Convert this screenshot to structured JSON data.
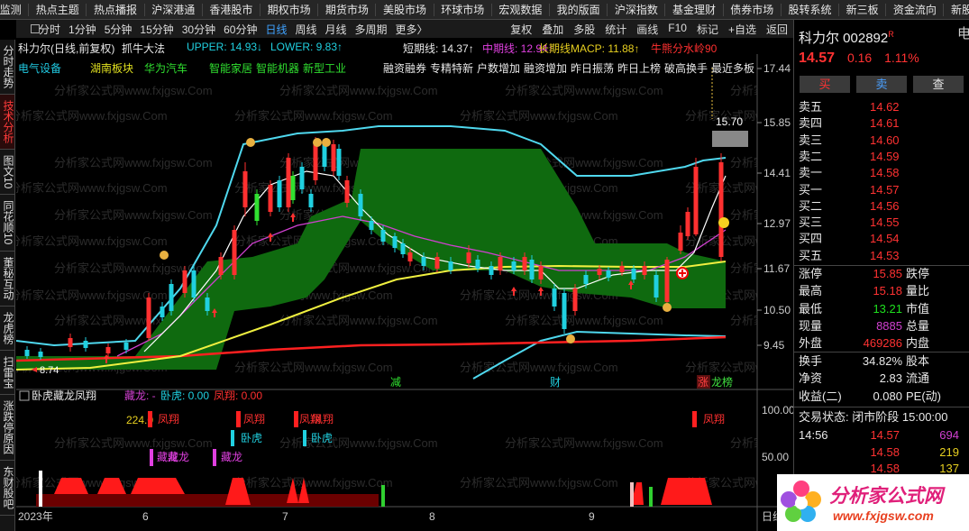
{
  "top_menu": [
    "监测",
    "热点主题",
    "热点播报",
    "沪深港通",
    "香港股市",
    "期权市场",
    "期货市场",
    "美股市场",
    "环球市场",
    "宏观数据",
    "我的版面",
    "沪深指数",
    "基金理财",
    "债券市场",
    "股转系统",
    "新三板",
    "资金流向",
    "新股IPO"
  ],
  "side_tabs": [
    "分时走势",
    "技术分析",
    "图文10",
    "同花顺10",
    "董秘互动",
    "龙虎榜",
    "扫雷宝",
    "涨跌停原因",
    "东财股吧"
  ],
  "periods": [
    "分时",
    "1分钟",
    "5分钟",
    "15分钟",
    "30分钟",
    "60分钟",
    "日线",
    "周线",
    "月线",
    "多周期",
    "更多〉"
  ],
  "tools": [
    "复权",
    "叠加",
    "多股",
    "统计",
    "画线",
    "F10",
    "标记",
    "+自选",
    "返回"
  ],
  "indicator_line": [
    "科力尔(日线,前复权)",
    "抓牛大法",
    "UPPER: 14.93↓",
    "LOWER: 9.83↑",
    "短期线: 14.37↑",
    "中期线: 12.94↑",
    "长期线MACP: 11.88↑",
    "牛熊分水岭90"
  ],
  "tags_left": [
    "电气设备",
    "湖南板块",
    "华为汽车",
    "智能家居",
    "智能机器",
    "新型工业"
  ],
  "tags_right": [
    "融资融券",
    "专精特新",
    "户数增加",
    "融资增加",
    "昨日振荡",
    "昨日上榜",
    "破高换手",
    "最近多板"
  ],
  "price_axis": [
    "17.44",
    "15.85",
    "14.41",
    "12.97",
    "11.67",
    "10.50",
    "9.45"
  ],
  "price_marker": "15.70",
  "low_label": "8.74",
  "event_markers": [
    "减",
    "财",
    "涨",
    "龙榜"
  ],
  "watermark": "分析家公式网www.fxjgsw.Com",
  "sub_chart": {
    "title": "卧虎藏龙凤翔",
    "legend": [
      "藏龙: -",
      "卧虎: 0.00",
      "凤翔: 0.00"
    ],
    "axis": [
      "100.00",
      "50.00"
    ],
    "value_label": "224.0",
    "fengxiang": "凤翔",
    "wohu": "卧虎",
    "canglong": "藏龙"
  },
  "date_axis": [
    "2023年",
    "6",
    "7",
    "8",
    "9"
  ],
  "period_label": "日线",
  "quote": {
    "name": "科力尔 002892",
    "flag": "R",
    "side_cut": "电",
    "price": "14.57",
    "change": "0.16",
    "pct": "1.11%",
    "buttons": [
      "买",
      "卖",
      "查"
    ],
    "book": [
      [
        "卖五",
        "14.62"
      ],
      [
        "卖四",
        "14.61"
      ],
      [
        "卖三",
        "14.60"
      ],
      [
        "卖二",
        "14.59"
      ],
      [
        "卖一",
        "14.58"
      ],
      [
        "买一",
        "14.57"
      ],
      [
        "买二",
        "14.56"
      ],
      [
        "买三",
        "14.55"
      ],
      [
        "买四",
        "14.54"
      ],
      [
        "买五",
        "14.53"
      ]
    ],
    "stats": [
      [
        "涨停",
        "15.85",
        "跌停"
      ],
      [
        "最高",
        "15.18",
        "量比"
      ],
      [
        "最低",
        "13.21",
        "市值"
      ],
      [
        "现量",
        "8885",
        "总量"
      ],
      [
        "外盘",
        "469286",
        "内盘"
      ]
    ],
    "stats2": [
      [
        "换手",
        "34.82%",
        "股本"
      ],
      [
        "净资",
        "2.83",
        "流通"
      ],
      [
        "收益(二)",
        "0.080",
        "PE(动)"
      ]
    ],
    "status": [
      "交易状态:",
      "闭市阶段",
      "15:00:00"
    ],
    "ticks": [
      {
        "time": "14:56",
        "price": "14.57",
        "vol": "694"
      },
      {
        "price": "14.58",
        "vol": "219"
      },
      {
        "price": "14.58",
        "vol": "137"
      }
    ]
  },
  "logo": {
    "name": "分析家公式网",
    "url": "www.fxjgsw.com"
  }
}
